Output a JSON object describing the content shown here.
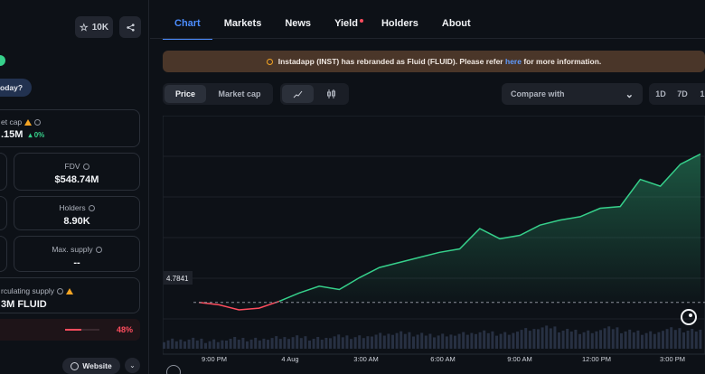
{
  "header": {
    "watch_count": "10K",
    "today_question": "oday?"
  },
  "stats": {
    "market_cap": {
      "label": "et cap",
      "value": ".15M",
      "change": "0%"
    },
    "fdv": {
      "label": "FDV",
      "value": "$548.74M"
    },
    "holders": {
      "label": "Holders",
      "value": "8.90K"
    },
    "max_supply": {
      "label": "Max. supply",
      "value": "--"
    },
    "circulating_supply": {
      "label": "rculating supply",
      "value": "3M FLUID"
    },
    "progress_percent": "48%",
    "progress_value": 0.48
  },
  "website_label": "Website",
  "tabs": [
    "Chart",
    "Markets",
    "News",
    "Yield",
    "Holders",
    "About"
  ],
  "banner": {
    "text_before": "Instadapp (INST) has rebranded as Fluid (FLUID). Please refer",
    "link": "here",
    "text_after": "for more information."
  },
  "chart_controls": {
    "modes": [
      "Price",
      "Market cap"
    ],
    "compare_label": "Compare with",
    "ranges": [
      "1D",
      "7D",
      "1"
    ]
  },
  "colors": {
    "accent": "#4c8dff",
    "up": "#36d08b",
    "down": "#ff4d5e",
    "banner_bg": "#4a3629"
  },
  "icons": [
    "star-icon",
    "share-icon",
    "info-icon",
    "warning-icon",
    "line-chart-icon",
    "candlestick-icon",
    "chevron-down-icon",
    "globe-icon",
    "coingecko-logo"
  ],
  "chart_data": {
    "type": "area",
    "baseline_label": "4.7841",
    "x_ticks": [
      "9:00 PM",
      "4 Aug",
      "3:00 AM",
      "6:00 AM",
      "9:00 AM",
      "12:00 PM",
      "3:00 PM"
    ],
    "x": [
      0,
      4,
      8,
      12,
      16,
      20,
      24,
      28,
      32,
      36,
      40,
      44,
      48,
      52,
      56,
      60,
      64,
      68,
      72,
      76,
      80,
      84,
      88,
      92,
      96,
      100
    ],
    "values": [
      4.7841,
      4.77,
      4.74,
      4.75,
      4.79,
      4.84,
      4.88,
      4.86,
      4.93,
      4.99,
      5.02,
      5.05,
      5.08,
      5.1,
      5.22,
      5.16,
      5.18,
      5.24,
      5.27,
      5.29,
      5.34,
      5.35,
      5.51,
      5.47,
      5.6,
      5.66
    ],
    "volume": [
      8,
      9,
      7,
      10,
      9,
      11,
      12,
      10,
      13,
      12,
      15,
      17,
      15,
      14,
      16,
      18,
      16,
      21,
      24,
      20,
      18,
      23,
      19,
      17,
      22,
      20
    ]
  }
}
